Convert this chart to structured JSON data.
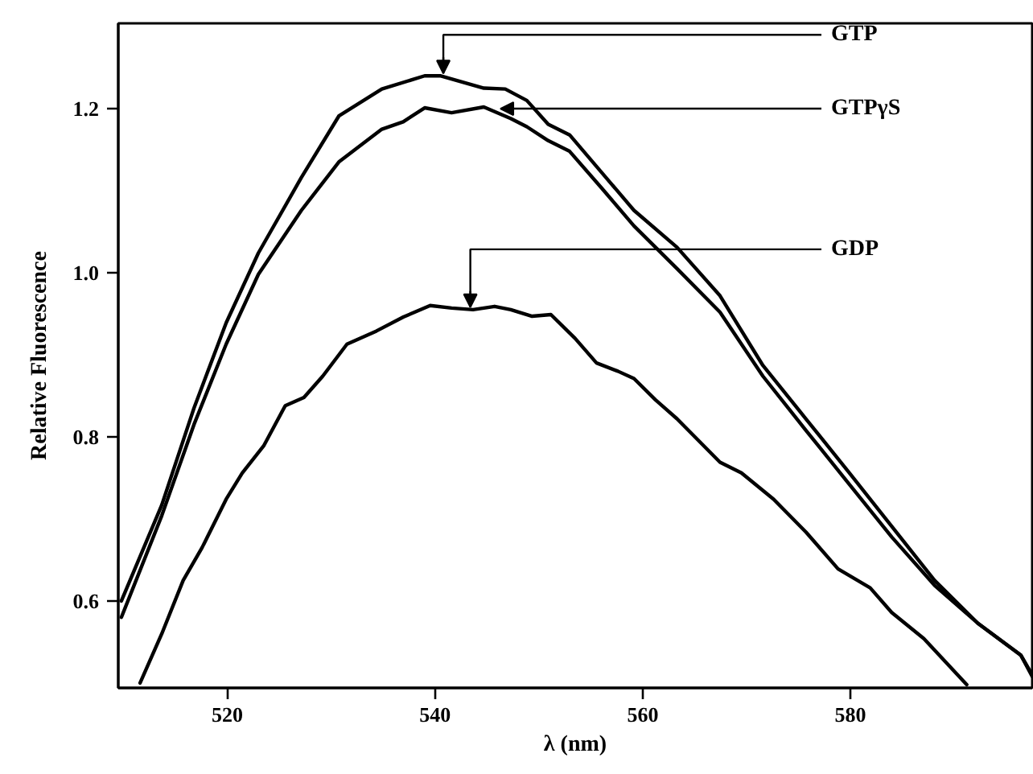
{
  "chart_data": {
    "type": "line",
    "xlabel": "λ (nm)",
    "ylabel": "Relative Fluorescence",
    "xlim": [
      509.5,
      597.5
    ],
    "ylim": [
      0.494,
      1.304
    ],
    "xticks": [
      520,
      540,
      560,
      580
    ],
    "yticks": [
      0.6,
      0.8,
      {
        "value": 1.0,
        "label": "1.0"
      },
      1.2
    ],
    "grid": false,
    "marker": "none",
    "line_style": "solid",
    "series": [
      {
        "color": "#000000",
        "x": [
          509.8,
          513.69,
          516.79,
          519.89,
          522.99,
          527.13,
          530.74,
          534.88,
          539.0,
          540.56,
          544.7,
          546.76,
          548.84,
          550.9,
          552.96,
          556.06,
          559.16,
          563.3,
          567.44,
          571.57,
          575.71,
          579.84,
          583.97,
          588.1,
          592.25,
          596.4,
          597.5
        ],
        "values": [
          0.6,
          0.717,
          0.835,
          0.939,
          1.024,
          1.116,
          1.191,
          1.224,
          1.24,
          1.24,
          1.225,
          1.224,
          1.21,
          1.181,
          1.168,
          1.122,
          1.076,
          1.031,
          0.972,
          0.887,
          0.822,
          0.757,
          0.691,
          0.625,
          0.573,
          0.534,
          0.508
        ]
      },
      {
        "color": "#000000",
        "x": [
          509.8,
          513.69,
          516.79,
          519.89,
          522.99,
          527.13,
          530.74,
          534.88,
          536.94,
          539.0,
          541.59,
          544.7,
          547.28,
          548.84,
          550.9,
          552.96,
          556.06,
          559.16,
          563.3,
          567.44,
          571.57,
          575.71,
          579.84,
          583.97,
          588.1,
          592.25,
          596.4,
          597.5
        ],
        "values": [
          0.58,
          0.704,
          0.815,
          0.913,
          0.998,
          1.076,
          1.135,
          1.175,
          1.184,
          1.201,
          1.195,
          1.202,
          1.188,
          1.178,
          1.161,
          1.148,
          1.103,
          1.057,
          1.005,
          0.952,
          0.874,
          0.808,
          0.743,
          0.678,
          0.619,
          0.573,
          0.534,
          0.51
        ]
      },
      {
        "color": "#000000",
        "x": [
          511.6,
          513.69,
          515.75,
          517.57,
          519.89,
          521.44,
          523.5,
          525.58,
          527.38,
          529.19,
          531.52,
          534.36,
          536.95,
          539.53,
          541.6,
          543.66,
          545.74,
          547.29,
          549.35,
          551.16,
          553.49,
          555.55,
          557.61,
          559.16,
          561.24,
          563.3,
          567.44,
          569.5,
          572.6,
          575.71,
          578.81,
          581.9,
          583.97,
          587.07,
          591.2
        ],
        "values": [
          0.5,
          0.56,
          0.625,
          0.665,
          0.724,
          0.756,
          0.789,
          0.838,
          0.848,
          0.874,
          0.913,
          0.929,
          0.946,
          0.96,
          0.957,
          0.955,
          0.959,
          0.955,
          0.947,
          0.949,
          0.92,
          0.89,
          0.88,
          0.871,
          0.845,
          0.822,
          0.769,
          0.756,
          0.724,
          0.684,
          0.639,
          0.616,
          0.586,
          0.554,
          0.498
        ]
      }
    ],
    "annotations": [
      {
        "text": "GTP",
        "x": 540.8,
        "y": 1.243
      },
      {
        "text": "GTPγS",
        "x": 546.3,
        "y": 1.2
      },
      {
        "text": "GDP",
        "x": 543.4,
        "y": 0.958
      }
    ]
  }
}
